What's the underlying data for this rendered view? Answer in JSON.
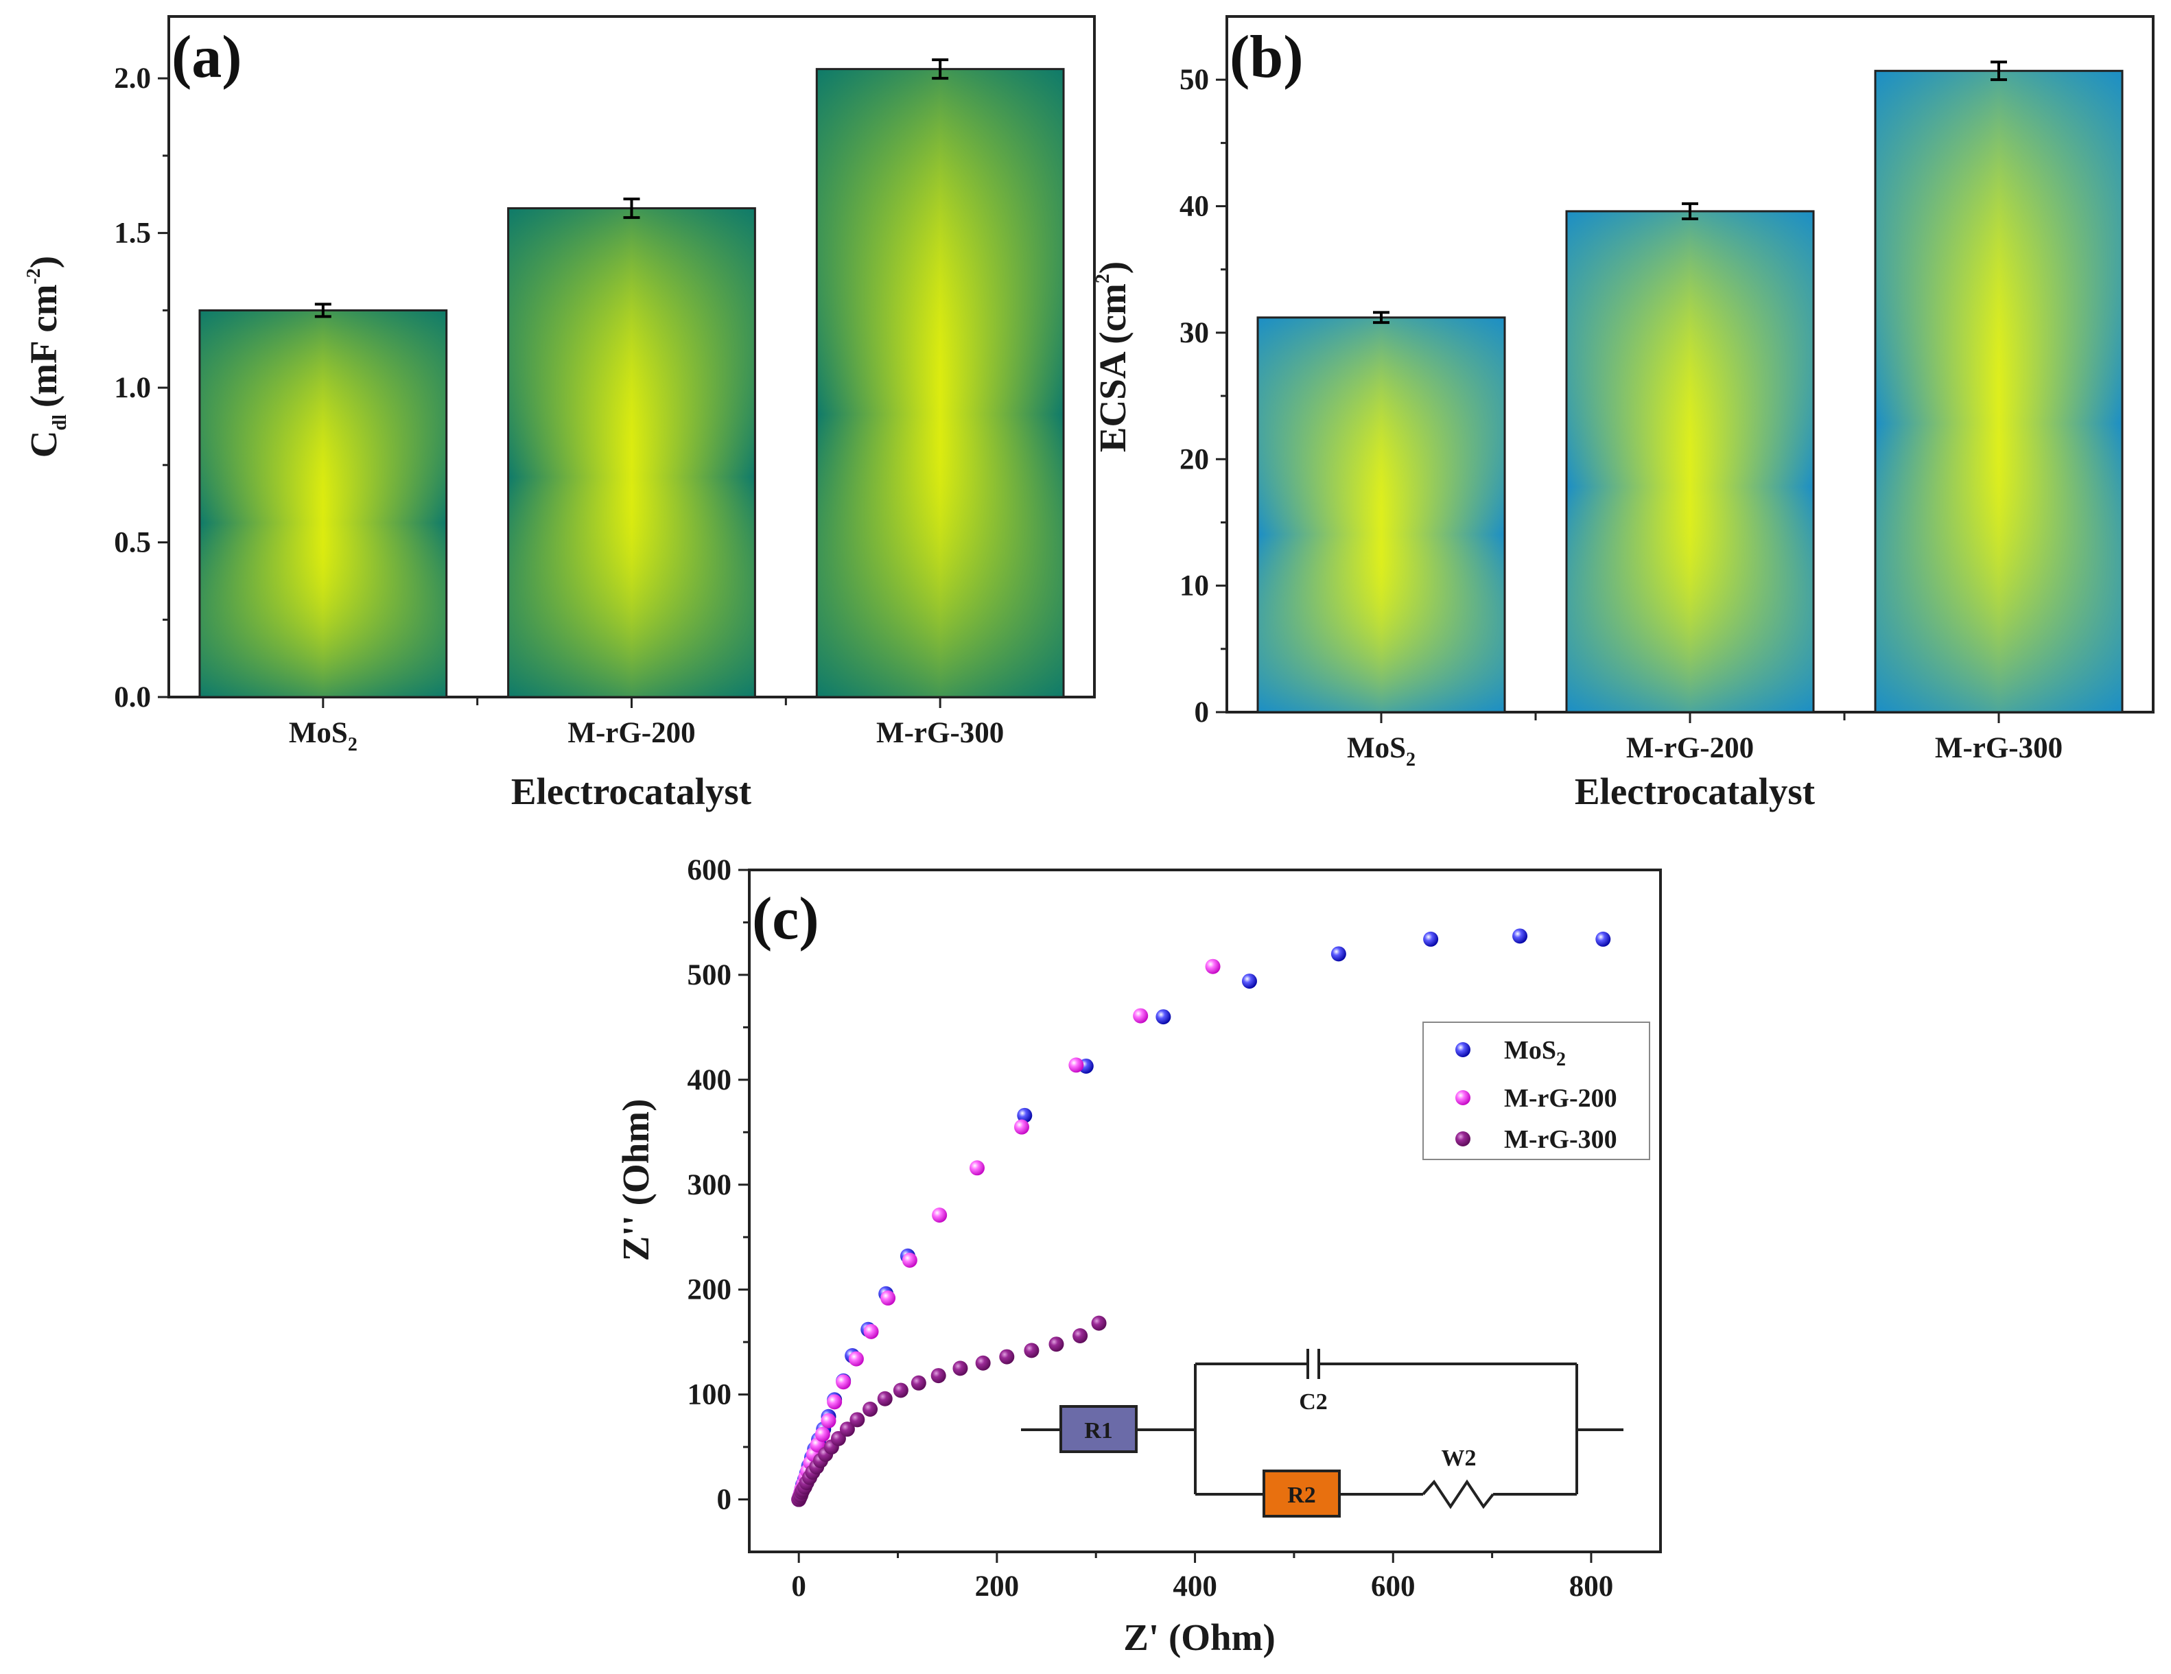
{
  "colors": {
    "bar_a_edge": "#0e7a6a",
    "bar_b_edge": "#1b8ec6",
    "bar_center": "#ffff00",
    "mos2": "#1010e0",
    "mrg200": "#ff20ff",
    "mrg300": "#8a1a86",
    "r1": "#6b6ba8",
    "r2": "#e8700f"
  },
  "chart_data": [
    {
      "panel": "(a)",
      "type": "bar",
      "categories": [
        "MoS",
        "M-rG-200",
        "M-rG-300"
      ],
      "category_subscripts": [
        "2",
        "",
        ""
      ],
      "values": [
        1.25,
        1.58,
        2.03
      ],
      "errors": [
        0.02,
        0.03,
        0.03
      ],
      "xlabel": "Electrocatalyst",
      "ylabel": {
        "main": "C",
        "sub": "dl",
        "unit": "(mF cm",
        "exp": "-2",
        "close": ")"
      },
      "ylim": [
        0,
        2.2
      ],
      "yticks": [
        "0.0",
        "0.5",
        "1.0",
        "1.5",
        "2.0"
      ]
    },
    {
      "panel": "(b)",
      "type": "bar",
      "categories": [
        "MoS",
        "M-rG-200",
        "M-rG-300"
      ],
      "category_subscripts": [
        "2",
        "",
        ""
      ],
      "values": [
        31.2,
        39.6,
        50.7
      ],
      "errors": [
        0.4,
        0.6,
        0.7
      ],
      "xlabel": "Electrocatalyst",
      "ylabel": {
        "main": "ECSA (cm",
        "exp": "2",
        "close": ")"
      },
      "ylim": [
        0,
        55
      ],
      "yticks": [
        "0",
        "10",
        "20",
        "30",
        "40",
        "50"
      ]
    },
    {
      "panel": "(c)",
      "type": "scatter",
      "xlabel": "Z' (Ohm)",
      "ylabel": "Z'' (Ohm)",
      "xlim": [
        -50,
        870
      ],
      "ylim": [
        -50,
        600
      ],
      "xticks": [
        "0",
        "200",
        "400",
        "600",
        "800"
      ],
      "yticks": [
        "0",
        "100",
        "200",
        "300",
        "400",
        "500",
        "600"
      ],
      "series": [
        {
          "name": "MoS",
          "name_sub": "2",
          "color": "mos2",
          "points": [
            [
              0,
              0
            ],
            [
              1,
              3
            ],
            [
              2,
              6
            ],
            [
              3,
              10
            ],
            [
              4,
              14
            ],
            [
              6,
              19
            ],
            [
              8,
              25
            ],
            [
              10,
              32
            ],
            [
              13,
              40
            ],
            [
              16,
              48
            ],
            [
              20,
              57
            ],
            [
              25,
              67
            ],
            [
              30,
              79
            ],
            [
              36,
              95
            ],
            [
              45,
              113
            ],
            [
              54,
              137
            ],
            [
              70,
              162
            ],
            [
              88,
              196
            ],
            [
              110,
              232
            ],
            [
              228,
              366
            ],
            [
              290,
              413
            ],
            [
              368,
              460
            ],
            [
              455,
              494
            ],
            [
              545,
              520
            ],
            [
              638,
              534
            ],
            [
              728,
              537
            ],
            [
              812,
              534
            ]
          ]
        },
        {
          "name": "M-rG-200",
          "name_sub": "",
          "color": "mrg200",
          "points": [
            [
              0,
              0
            ],
            [
              1,
              3
            ],
            [
              2,
              6
            ],
            [
              3,
              10
            ],
            [
              5,
              15
            ],
            [
              7,
              21
            ],
            [
              9,
              27
            ],
            [
              12,
              35
            ],
            [
              15,
              43
            ],
            [
              19,
              52
            ],
            [
              24,
              62
            ],
            [
              30,
              75
            ],
            [
              36,
              93
            ],
            [
              45,
              112
            ],
            [
              58,
              134
            ],
            [
              73,
              160
            ],
            [
              90,
              192
            ],
            [
              112,
              228
            ],
            [
              142,
              271
            ],
            [
              180,
              316
            ],
            [
              225,
              355
            ],
            [
              280,
              414
            ],
            [
              345,
              461
            ],
            [
              418,
              508
            ]
          ]
        },
        {
          "name": "M-rG-300",
          "name_sub": "",
          "color": "mrg300",
          "points": [
            [
              0,
              0
            ],
            [
              1,
              2
            ],
            [
              2,
              4
            ],
            [
              3,
              7
            ],
            [
              4,
              9
            ],
            [
              6,
              12
            ],
            [
              8,
              16
            ],
            [
              11,
              21
            ],
            [
              14,
              26
            ],
            [
              18,
              31
            ],
            [
              22,
              37
            ],
            [
              27,
              43
            ],
            [
              33,
              50
            ],
            [
              40,
              58
            ],
            [
              49,
              67
            ],
            [
              59,
              76
            ],
            [
              72,
              86
            ],
            [
              87,
              96
            ],
            [
              103,
              104
            ],
            [
              121,
              111
            ],
            [
              141,
              118
            ],
            [
              163,
              125
            ],
            [
              186,
              130
            ],
            [
              210,
              136
            ],
            [
              235,
              142
            ],
            [
              260,
              148
            ],
            [
              284,
              156
            ],
            [
              303,
              168
            ]
          ]
        }
      ]
    }
  ],
  "circuit": {
    "labels": [
      "R1",
      "C2",
      "R2",
      "W2"
    ]
  }
}
